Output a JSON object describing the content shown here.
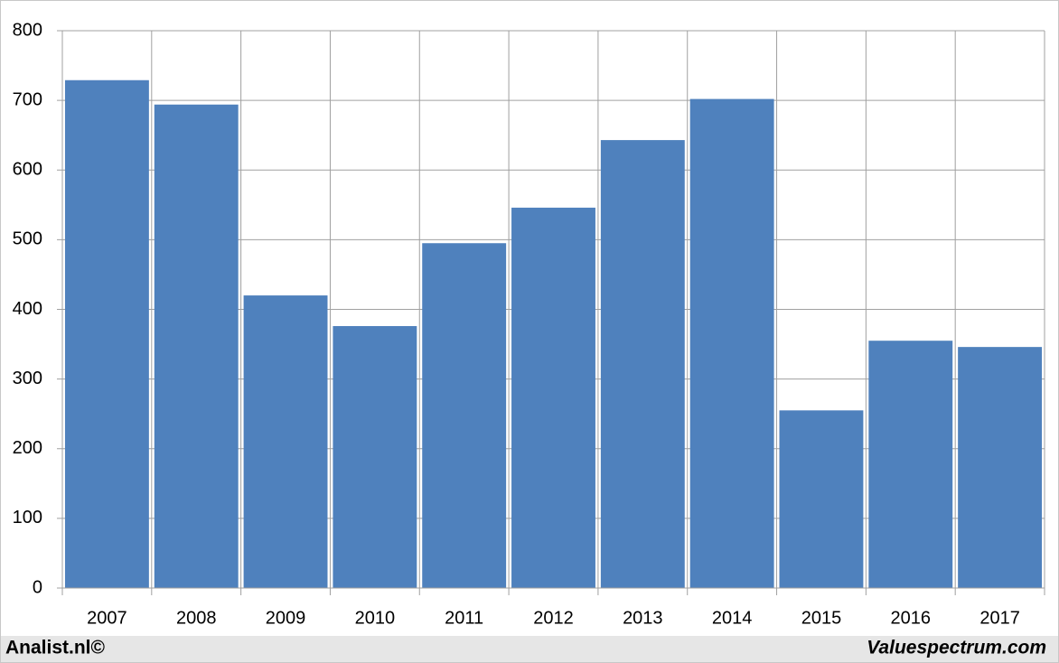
{
  "chart_data": {
    "type": "bar",
    "categories": [
      "2007",
      "2008",
      "2009",
      "2010",
      "2011",
      "2012",
      "2013",
      "2014",
      "2015",
      "2016",
      "2017"
    ],
    "values": [
      729,
      694,
      420,
      376,
      495,
      546,
      643,
      702,
      255,
      355,
      346
    ],
    "color": "#4f81bd",
    "ylim": [
      0,
      800
    ],
    "yticks": [
      0,
      100,
      200,
      300,
      400,
      500,
      600,
      700,
      800
    ],
    "grid": true,
    "footer_left": "Analist.nl©",
    "footer_right": "Valuespectrum.com"
  }
}
